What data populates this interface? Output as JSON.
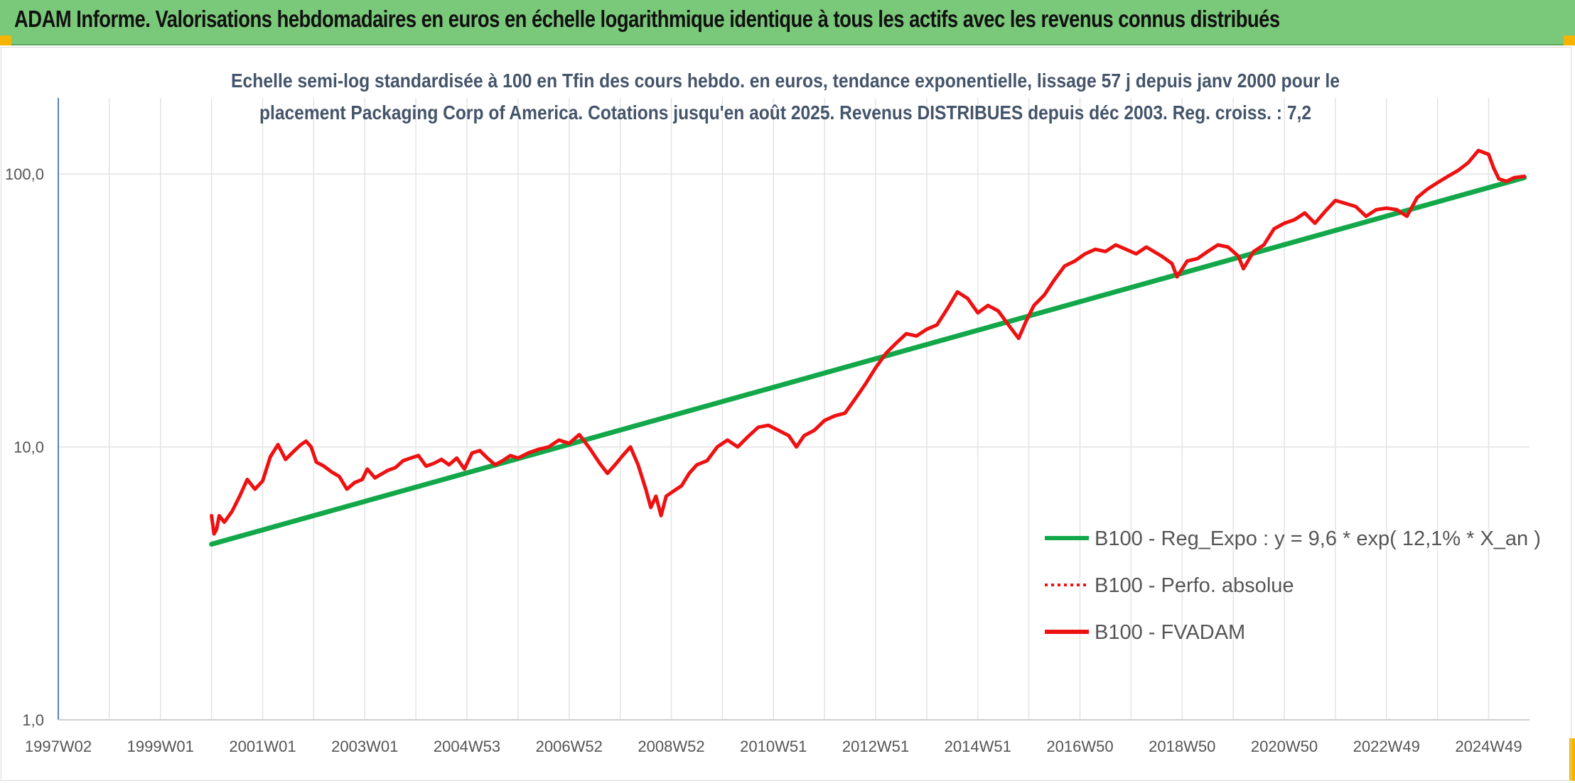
{
  "banner": {
    "title": "ADAM Informe. Valorisations hebdomadaires en euros en échelle logarithmique identique à tous les actifs avec les revenus connus distribués"
  },
  "colors": {
    "banner_bg": "#7ac879",
    "corner_accent": "#f4b400",
    "trend_line": "#12a84a",
    "series_line": "#ee1111",
    "axis_line": "#5b7fbf",
    "grid": "#e3e3e3"
  },
  "chart_data": {
    "type": "line",
    "title_lines": [
      "Echelle semi-log standardisée à 100 en Tfin des cours hebdo. en euros, tendance exponentielle, lissage 57 j depuis janv 2000 pour le",
      "placement Packaging Corp of America. Cotations jusqu'en août 2025. Revenus DISTRIBUES depuis déc 2003. Reg. croiss. : 7,2"
    ],
    "y_scale": "log",
    "ylim": [
      1,
      190
    ],
    "y_ticks": [
      {
        "value": 1,
        "label": "1,0"
      },
      {
        "value": 10,
        "label": "10,0"
      },
      {
        "value": 100,
        "label": "100,0"
      }
    ],
    "xlim": [
      1997.0,
      2025.8
    ],
    "x_ticks": [
      {
        "value": 1997.0,
        "label": "1997W02"
      },
      {
        "value": 1999.0,
        "label": "1999W01"
      },
      {
        "value": 2001.0,
        "label": "2001W01"
      },
      {
        "value": 2003.0,
        "label": "2003W01"
      },
      {
        "value": 2005.0,
        "label": "2004W53"
      },
      {
        "value": 2007.0,
        "label": "2006W52"
      },
      {
        "value": 2009.0,
        "label": "2008W52"
      },
      {
        "value": 2011.0,
        "label": "2010W51"
      },
      {
        "value": 2013.0,
        "label": "2012W51"
      },
      {
        "value": 2015.0,
        "label": "2014W51"
      },
      {
        "value": 2017.0,
        "label": "2016W50"
      },
      {
        "value": 2019.0,
        "label": "2018W50"
      },
      {
        "value": 2021.0,
        "label": "2020W50"
      },
      {
        "value": 2023.0,
        "label": "2022W49"
      },
      {
        "value": 2025.0,
        "label": "2024W49"
      }
    ],
    "grid": "vertical",
    "legend_position": "bottom-right",
    "series": [
      {
        "name": "B100 - Reg_Expo : y = 9,6 * exp( 12,1% *  X_an )",
        "style": "solid",
        "color": "#12a84a",
        "x": [
          2000.0,
          2025.7
        ],
        "y": [
          4.4,
          97
        ]
      },
      {
        "name": "B100 - Perfo. absolue",
        "style": "dotted",
        "color": "#ee1111",
        "x": [],
        "y": []
      },
      {
        "name": "B100 - FVADAM",
        "style": "solid",
        "color": "#ee1111",
        "x": [
          2000.0,
          2000.05,
          2000.1,
          2000.15,
          2000.25,
          2000.4,
          2000.55,
          2000.7,
          2000.85,
          2001.0,
          2001.15,
          2001.3,
          2001.45,
          2001.6,
          2001.75,
          2001.85,
          2001.95,
          2002.05,
          2002.2,
          2002.35,
          2002.5,
          2002.65,
          2002.8,
          2002.95,
          2003.05,
          2003.2,
          2003.3,
          2003.45,
          2003.6,
          2003.75,
          2003.9,
          2004.05,
          2004.2,
          2004.35,
          2004.5,
          2004.65,
          2004.8,
          2004.95,
          2005.1,
          2005.25,
          2005.4,
          2005.55,
          2005.7,
          2005.85,
          2006.0,
          2006.2,
          2006.4,
          2006.6,
          2006.8,
          2007.0,
          2007.2,
          2007.4,
          2007.6,
          2007.75,
          2007.9,
          2008.05,
          2008.2,
          2008.35,
          2008.5,
          2008.6,
          2008.7,
          2008.8,
          2008.9,
          2009.05,
          2009.2,
          2009.35,
          2009.5,
          2009.7,
          2009.9,
          2010.1,
          2010.3,
          2010.5,
          2010.7,
          2010.9,
          2011.1,
          2011.3,
          2011.45,
          2011.6,
          2011.8,
          2012.0,
          2012.2,
          2012.4,
          2012.6,
          2012.8,
          2013.0,
          2013.2,
          2013.4,
          2013.6,
          2013.8,
          2014.0,
          2014.2,
          2014.4,
          2014.6,
          2014.8,
          2015.0,
          2015.2,
          2015.4,
          2015.6,
          2015.8,
          2015.95,
          2016.1,
          2016.3,
          2016.5,
          2016.7,
          2016.9,
          2017.1,
          2017.3,
          2017.5,
          2017.7,
          2017.9,
          2018.1,
          2018.3,
          2018.6,
          2018.8,
          2018.9,
          2019.1,
          2019.3,
          2019.5,
          2019.7,
          2019.9,
          2020.1,
          2020.2,
          2020.4,
          2020.6,
          2020.8,
          2021.0,
          2021.2,
          2021.4,
          2021.6,
          2021.8,
          2022.0,
          2022.2,
          2022.4,
          2022.6,
          2022.8,
          2023.0,
          2023.2,
          2023.4,
          2023.6,
          2023.8,
          2024.0,
          2024.2,
          2024.4,
          2024.6,
          2024.8,
          2025.0,
          2025.1,
          2025.2,
          2025.35,
          2025.5,
          2025.7
        ],
        "y": [
          5.6,
          4.8,
          5.0,
          5.6,
          5.3,
          5.8,
          6.6,
          7.6,
          7.0,
          7.5,
          9.2,
          10.2,
          9.0,
          9.6,
          10.2,
          10.5,
          10.0,
          8.8,
          8.5,
          8.1,
          7.8,
          7.0,
          7.4,
          7.6,
          8.3,
          7.7,
          7.9,
          8.2,
          8.4,
          8.9,
          9.1,
          9.3,
          8.5,
          8.7,
          9.0,
          8.6,
          9.1,
          8.3,
          9.5,
          9.7,
          9.1,
          8.6,
          8.9,
          9.3,
          9.1,
          9.5,
          9.8,
          10.0,
          10.6,
          10.3,
          11.1,
          9.9,
          8.7,
          8.0,
          8.6,
          9.3,
          10.0,
          8.6,
          7.0,
          6.0,
          6.6,
          5.6,
          6.6,
          6.9,
          7.2,
          8.0,
          8.6,
          8.9,
          10.0,
          10.6,
          10.0,
          10.9,
          11.8,
          12.0,
          11.5,
          11.0,
          10.0,
          11.0,
          11.5,
          12.5,
          13.0,
          13.3,
          15.0,
          17.0,
          19.5,
          22.0,
          24.0,
          26.0,
          25.5,
          27.0,
          28.0,
          32.0,
          37.0,
          35.0,
          31.0,
          33.0,
          31.5,
          28.0,
          25.0,
          29.0,
          33.0,
          36.0,
          41.0,
          46.0,
          48.0,
          51.0,
          53.0,
          52.0,
          55.0,
          53.0,
          51.0,
          54.0,
          50.0,
          47.0,
          42.0,
          48.0,
          49.0,
          52.0,
          55.0,
          54.0,
          50.0,
          45.0,
          52.0,
          55.0,
          63.0,
          66.0,
          68.0,
          72.0,
          66.0,
          73.0,
          80.0,
          78.0,
          76.0,
          70.0,
          74.0,
          75.0,
          74.0,
          70.0,
          82.0,
          88.0,
          93.0,
          98.0,
          103.0,
          110.0,
          122.0,
          118.0,
          105.0,
          96.0,
          94.0,
          97.0,
          98.0
        ]
      }
    ]
  }
}
